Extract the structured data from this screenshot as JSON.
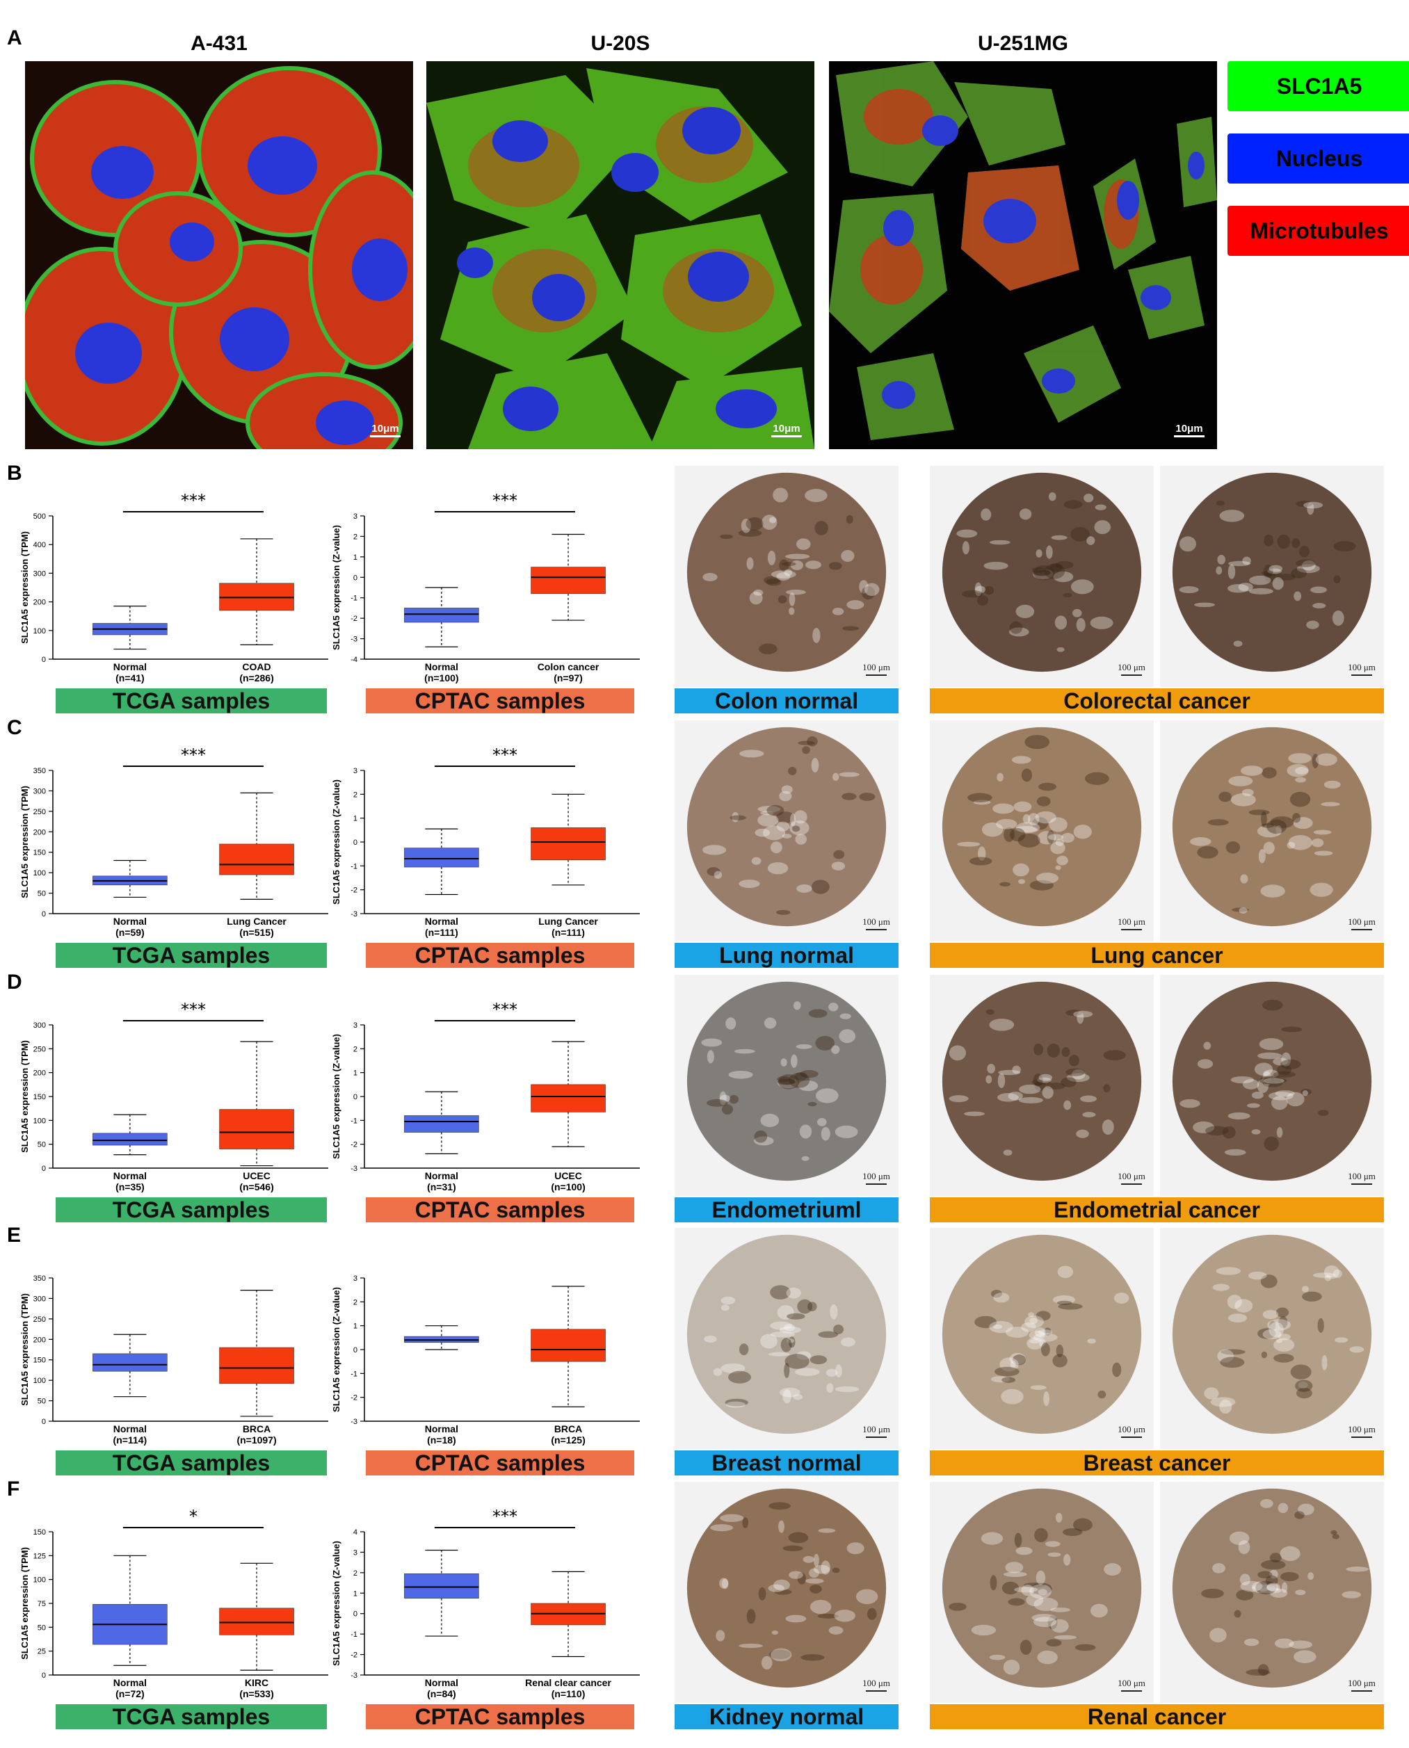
{
  "panel_letters": {
    "a": "A",
    "b": "B",
    "c": "C",
    "d": "D",
    "e": "E",
    "f": "F"
  },
  "cell_lines": [
    "A-431",
    "U-20S",
    "U-251MG"
  ],
  "scale_micro": "10μm",
  "legend": [
    {
      "label": "SLC1A5",
      "color": "#00ff00"
    },
    {
      "label": "Nucleus",
      "color": "#0022ff"
    },
    {
      "label": "Microtubules",
      "color": "#ff0000"
    }
  ],
  "colors": {
    "normal_box": "#4f68e6",
    "cancer_box": "#f43a0e"
  },
  "scale_tissue": "100 μm",
  "ylabel_tpm": "SLC1A5 expression (TPM)",
  "ylabel_z": "SLC1A5 expression (Z-value)",
  "banners": {
    "tcga": "TCGA samples",
    "cptac": "CPTAC samples"
  },
  "rows": [
    {
      "normal_tissue": "Colon normal",
      "cancer_tissue": "Colorectal cancer"
    },
    {
      "normal_tissue": "Lung normal",
      "cancer_tissue": "Lung cancer"
    },
    {
      "normal_tissue": "Endometriuml",
      "cancer_tissue": "Endometrial cancer"
    },
    {
      "normal_tissue": "Breast normal",
      "cancer_tissue": "Breast cancer"
    },
    {
      "normal_tissue": "Kidney normal",
      "cancer_tissue": "Renal cancer"
    }
  ],
  "chart_data": [
    {
      "type": "box",
      "panel": "B",
      "dataset": "TCGA samples",
      "ylabel": "SLC1A5 expression (TPM)",
      "ylim": [
        0,
        500
      ],
      "yticks": [
        0,
        100,
        200,
        300,
        400,
        500
      ],
      "significance": "***",
      "groups": [
        {
          "name": "Normal",
          "n": "(n=41)",
          "min": 35,
          "q1": 85,
          "median": 105,
          "q3": 125,
          "max": 185
        },
        {
          "name": "COAD",
          "n": "(n=286)",
          "min": 50,
          "q1": 170,
          "median": 215,
          "q3": 265,
          "max": 420
        }
      ]
    },
    {
      "type": "box",
      "panel": "B",
      "dataset": "CPTAC samples",
      "ylabel": "SLC1A5 expression (Z-value)",
      "ylim": [
        -4,
        3
      ],
      "yticks": [
        -4,
        -3,
        -2,
        -1,
        0,
        1,
        2,
        3
      ],
      "significance": "***",
      "groups": [
        {
          "name": "Normal",
          "n": "(n=100)",
          "min": -3.4,
          "q1": -2.2,
          "median": -1.8,
          "q3": -1.5,
          "max": -0.5
        },
        {
          "name": "Colon cancer",
          "n": "(n=97)",
          "min": -2.1,
          "q1": -0.8,
          "median": 0,
          "q3": 0.5,
          "max": 2.1
        }
      ]
    },
    {
      "type": "box",
      "panel": "C",
      "dataset": "TCGA samples",
      "ylabel": "SLC1A5 expression (TPM)",
      "ylim": [
        0,
        350
      ],
      "yticks": [
        0,
        50,
        100,
        150,
        200,
        250,
        300,
        350
      ],
      "significance": "***",
      "groups": [
        {
          "name": "Normal",
          "n": "(n=59)",
          "min": 40,
          "q1": 70,
          "median": 80,
          "q3": 92,
          "max": 130
        },
        {
          "name": "Lung Cancer",
          "n": "(n=515)",
          "min": 35,
          "q1": 95,
          "median": 120,
          "q3": 170,
          "max": 295
        }
      ]
    },
    {
      "type": "box",
      "panel": "C",
      "dataset": "CPTAC samples",
      "ylabel": "SLC1A5 expression (Z-value)",
      "ylim": [
        -3,
        3
      ],
      "yticks": [
        -3,
        -2,
        -1,
        0,
        1,
        2,
        3
      ],
      "significance": "***",
      "groups": [
        {
          "name": "Normal",
          "n": "(n=111)",
          "min": -2.2,
          "q1": -1.05,
          "median": -0.7,
          "q3": -0.25,
          "max": 0.55
        },
        {
          "name": "Lung Cancer",
          "n": "(n=111)",
          "min": -1.8,
          "q1": -0.75,
          "median": 0,
          "q3": 0.6,
          "max": 2
        }
      ]
    },
    {
      "type": "box",
      "panel": "D",
      "dataset": "TCGA samples",
      "ylabel": "SLC1A5 expression (TPM)",
      "ylim": [
        0,
        300
      ],
      "yticks": [
        0,
        50,
        100,
        150,
        200,
        250,
        300
      ],
      "significance": "***",
      "groups": [
        {
          "name": "Normal",
          "n": "(n=35)",
          "min": 28,
          "q1": 48,
          "median": 58,
          "q3": 73,
          "max": 112
        },
        {
          "name": "UCEC",
          "n": "(n=546)",
          "min": 5,
          "q1": 40,
          "median": 75,
          "q3": 123,
          "max": 265
        }
      ]
    },
    {
      "type": "box",
      "panel": "D",
      "dataset": "CPTAC samples",
      "ylabel": "SLC1A5 expression (Z-value)",
      "ylim": [
        -3,
        3
      ],
      "yticks": [
        -3,
        -2,
        -1,
        0,
        1,
        2,
        3
      ],
      "significance": "***",
      "groups": [
        {
          "name": "Normal",
          "n": "(n=31)",
          "min": -2.4,
          "q1": -1.5,
          "median": -1.05,
          "q3": -0.8,
          "max": 0.2
        },
        {
          "name": "UCEC",
          "n": "(n=100)",
          "min": -2.1,
          "q1": -0.65,
          "median": 0,
          "q3": 0.5,
          "max": 2.3
        }
      ]
    },
    {
      "type": "box",
      "panel": "E",
      "dataset": "TCGA samples",
      "ylabel": "SLC1A5 expression (TPM)",
      "ylim": [
        0,
        350
      ],
      "yticks": [
        0,
        50,
        100,
        150,
        200,
        250,
        300,
        350
      ],
      "significance": "",
      "groups": [
        {
          "name": "Normal",
          "n": "(n=114)",
          "min": 60,
          "q1": 122,
          "median": 138,
          "q3": 165,
          "max": 212
        },
        {
          "name": "BRCA",
          "n": "(n=1097)",
          "min": 12,
          "q1": 92,
          "median": 130,
          "q3": 180,
          "max": 320
        }
      ]
    },
    {
      "type": "box",
      "panel": "E",
      "dataset": "CPTAC samples",
      "ylabel": "SLC1A5 expression (Z-value)",
      "ylim": [
        -3,
        3
      ],
      "yticks": [
        -3,
        -2,
        -1,
        0,
        1,
        2,
        3
      ],
      "significance": "",
      "groups": [
        {
          "name": "Normal",
          "n": "(n=18)",
          "min": 0,
          "q1": 0.3,
          "median": 0.4,
          "q3": 0.55,
          "max": 1
        },
        {
          "name": "BRCA",
          "n": "(n=125)",
          "min": -2.4,
          "q1": -0.5,
          "median": 0,
          "q3": 0.85,
          "max": 2.65
        }
      ]
    },
    {
      "type": "box",
      "panel": "F",
      "dataset": "TCGA samples",
      "ylabel": "SLC1A5 expression (TPM)",
      "ylim": [
        0,
        150
      ],
      "yticks": [
        0,
        25,
        50,
        75,
        100,
        125,
        150
      ],
      "significance": "*",
      "groups": [
        {
          "name": "Normal",
          "n": "(n=72)",
          "min": 10,
          "q1": 32,
          "median": 53,
          "q3": 74,
          "max": 125
        },
        {
          "name": "KIRC",
          "n": "(n=533)",
          "min": 5,
          "q1": 42,
          "median": 55,
          "q3": 70,
          "max": 117
        }
      ]
    },
    {
      "type": "box",
      "panel": "F",
      "dataset": "CPTAC samples",
      "ylabel": "SLC1A5 expression (Z-value)",
      "ylim": [
        -3,
        4
      ],
      "yticks": [
        -3,
        -2,
        -1,
        0,
        1,
        2,
        3,
        4
      ],
      "significance": "***",
      "groups": [
        {
          "name": "Normal",
          "n": "(n=84)",
          "min": -1.1,
          "q1": 0.75,
          "median": 1.3,
          "q3": 1.95,
          "max": 3.1
        },
        {
          "name": "Renal clear cancer",
          "n": "(n=110)",
          "min": -2.1,
          "q1": -0.55,
          "median": 0,
          "q3": 0.5,
          "max": 2.05
        }
      ]
    }
  ]
}
